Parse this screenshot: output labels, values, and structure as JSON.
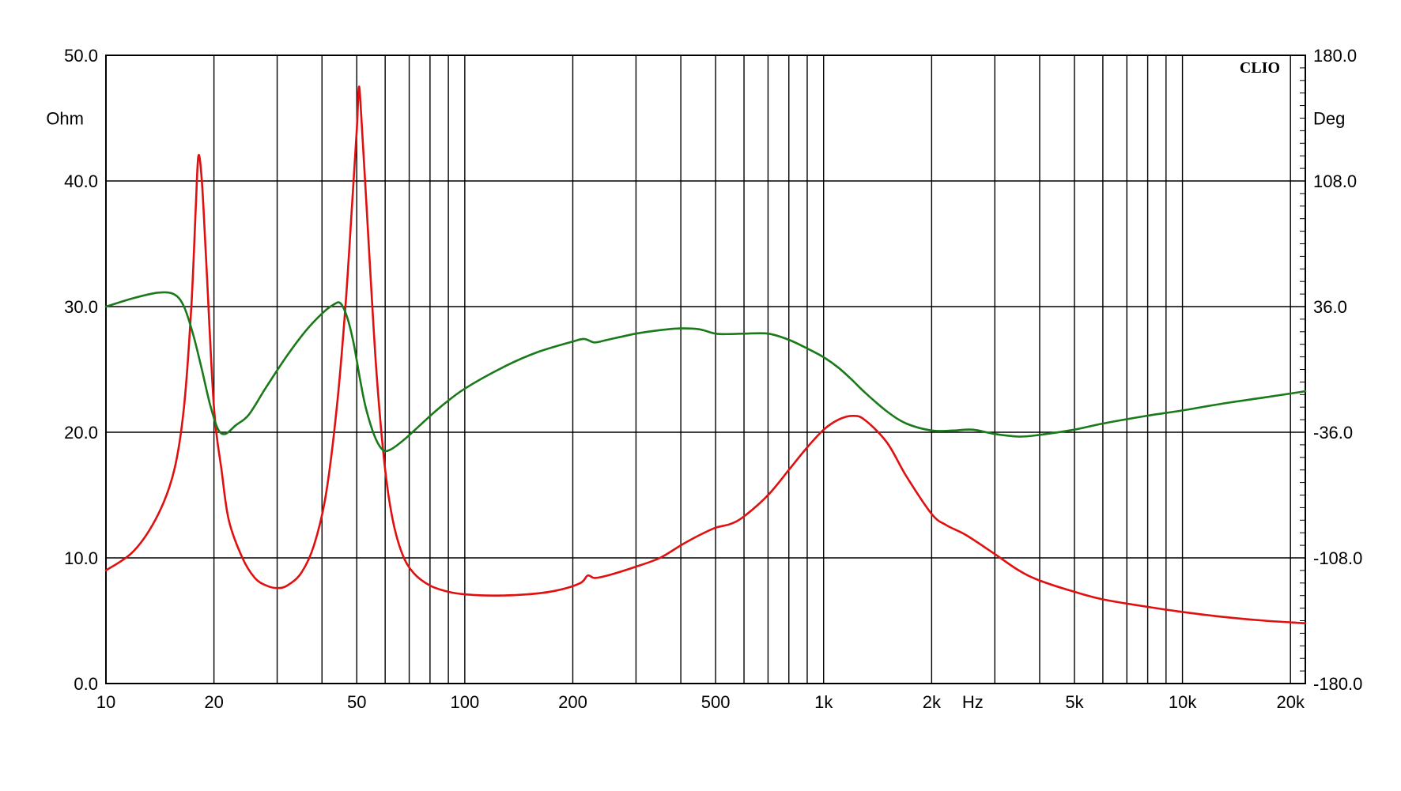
{
  "chart_data": {
    "type": "line",
    "brand": "CLIO",
    "x_scale": "log",
    "xlim": [
      10,
      22000
    ],
    "x_unit": "Hz",
    "x_ticks": [
      {
        "v": 10,
        "label": "10"
      },
      {
        "v": 20,
        "label": "20"
      },
      {
        "v": 50,
        "label": "50"
      },
      {
        "v": 100,
        "label": "100"
      },
      {
        "v": 200,
        "label": "200"
      },
      {
        "v": 500,
        "label": "500"
      },
      {
        "v": 1000,
        "label": "1k"
      },
      {
        "v": 2000,
        "label": "2k"
      },
      {
        "v": 5000,
        "label": "5k"
      },
      {
        "v": 10000,
        "label": "10k"
      },
      {
        "v": 20000,
        "label": "20k"
      }
    ],
    "y_left": {
      "unit": "Ohm",
      "ylim": [
        0,
        50
      ],
      "ticks": [
        "0.0",
        "10.0",
        "20.0",
        "30.0",
        "40.0",
        "50.0"
      ]
    },
    "y_right": {
      "unit": "Deg",
      "ylim": [
        -180,
        180
      ],
      "ticks": [
        "-180.0",
        "-108.0",
        "-36.0",
        "36.0",
        "108.0",
        "180.0"
      ]
    },
    "grid": true,
    "series": [
      {
        "color": "#e01010",
        "axis": "left",
        "points": [
          [
            10,
            9.0
          ],
          [
            12,
            10.6
          ],
          [
            14,
            13.5
          ],
          [
            15.5,
            17
          ],
          [
            16.5,
            22
          ],
          [
            17.3,
            30
          ],
          [
            17.8,
            38
          ],
          [
            18.1,
            42.0
          ],
          [
            18.5,
            40
          ],
          [
            19,
            34
          ],
          [
            20,
            22
          ],
          [
            21,
            17
          ],
          [
            22,
            13
          ],
          [
            24,
            10
          ],
          [
            26,
            8.4
          ],
          [
            28,
            7.8
          ],
          [
            30,
            7.6
          ],
          [
            32,
            7.8
          ],
          [
            35,
            8.8
          ],
          [
            38,
            11
          ],
          [
            41,
            15
          ],
          [
            44,
            22
          ],
          [
            46.5,
            30
          ],
          [
            48.5,
            38
          ],
          [
            50,
            44
          ],
          [
            50.7,
            47.5
          ],
          [
            51.5,
            45
          ],
          [
            53,
            39
          ],
          [
            55,
            31
          ],
          [
            57,
            24
          ],
          [
            60,
            17
          ],
          [
            63,
            13
          ],
          [
            67,
            10.3
          ],
          [
            72,
            8.8
          ],
          [
            80,
            7.8
          ],
          [
            90,
            7.3
          ],
          [
            100,
            7.1
          ],
          [
            120,
            7.0
          ],
          [
            150,
            7.1
          ],
          [
            180,
            7.4
          ],
          [
            210,
            8.0
          ],
          [
            220,
            8.6
          ],
          [
            230,
            8.4
          ],
          [
            250,
            8.6
          ],
          [
            300,
            9.3
          ],
          [
            350,
            10.0
          ],
          [
            400,
            11.0
          ],
          [
            450,
            11.8
          ],
          [
            500,
            12.4
          ],
          [
            550,
            12.7
          ],
          [
            600,
            13.3
          ],
          [
            700,
            15.0
          ],
          [
            800,
            17.0
          ],
          [
            900,
            18.8
          ],
          [
            1000,
            20.2
          ],
          [
            1100,
            21.0
          ],
          [
            1200,
            21.3
          ],
          [
            1300,
            21.0
          ],
          [
            1500,
            19.2
          ],
          [
            1700,
            16.5
          ],
          [
            2000,
            13.5
          ],
          [
            2200,
            12.6
          ],
          [
            2500,
            11.8
          ],
          [
            3000,
            10.3
          ],
          [
            3500,
            9.0
          ],
          [
            4000,
            8.2
          ],
          [
            5000,
            7.3
          ],
          [
            6000,
            6.7
          ],
          [
            8000,
            6.1
          ],
          [
            10000,
            5.7
          ],
          [
            13000,
            5.3
          ],
          [
            17000,
            5.0
          ],
          [
            22000,
            4.8
          ]
        ]
      },
      {
        "color": "#1a7a1a",
        "axis": "right",
        "points": [
          [
            10,
            36
          ],
          [
            12,
            41
          ],
          [
            14,
            44
          ],
          [
            15.5,
            43
          ],
          [
            16.5,
            36
          ],
          [
            17.5,
            20
          ],
          [
            18.5,
            0
          ],
          [
            19.5,
            -20
          ],
          [
            20.5,
            -34
          ],
          [
            21.5,
            -37
          ],
          [
            23,
            -32
          ],
          [
            25,
            -26
          ],
          [
            28,
            -10
          ],
          [
            32,
            8
          ],
          [
            36,
            22
          ],
          [
            40,
            32
          ],
          [
            43,
            37
          ],
          [
            45,
            38
          ],
          [
            47,
            30
          ],
          [
            49,
            15
          ],
          [
            51,
            -5
          ],
          [
            53,
            -22
          ],
          [
            56,
            -38
          ],
          [
            59,
            -46
          ],
          [
            62,
            -46
          ],
          [
            68,
            -40
          ],
          [
            75,
            -32
          ],
          [
            85,
            -22
          ],
          [
            100,
            -11
          ],
          [
            130,
            2
          ],
          [
            160,
            10
          ],
          [
            200,
            16
          ],
          [
            215,
            17.5
          ],
          [
            230,
            15.5
          ],
          [
            250,
            17
          ],
          [
            300,
            20.5
          ],
          [
            350,
            22.5
          ],
          [
            400,
            23.5
          ],
          [
            450,
            23
          ],
          [
            500,
            20.5
          ],
          [
            550,
            20.3
          ],
          [
            600,
            20.5
          ],
          [
            700,
            20.5
          ],
          [
            800,
            17
          ],
          [
            900,
            12
          ],
          [
            1000,
            7
          ],
          [
            1100,
            1
          ],
          [
            1200,
            -6
          ],
          [
            1300,
            -13
          ],
          [
            1500,
            -24
          ],
          [
            1700,
            -31
          ],
          [
            2000,
            -35
          ],
          [
            2300,
            -35
          ],
          [
            2600,
            -34.5
          ],
          [
            3000,
            -37
          ],
          [
            3500,
            -38.5
          ],
          [
            4000,
            -37.5
          ],
          [
            5000,
            -34.5
          ],
          [
            6000,
            -31
          ],
          [
            8000,
            -26.5
          ],
          [
            10000,
            -23.5
          ],
          [
            13000,
            -19.5
          ],
          [
            17000,
            -16
          ],
          [
            22000,
            -12.5
          ]
        ]
      }
    ]
  }
}
